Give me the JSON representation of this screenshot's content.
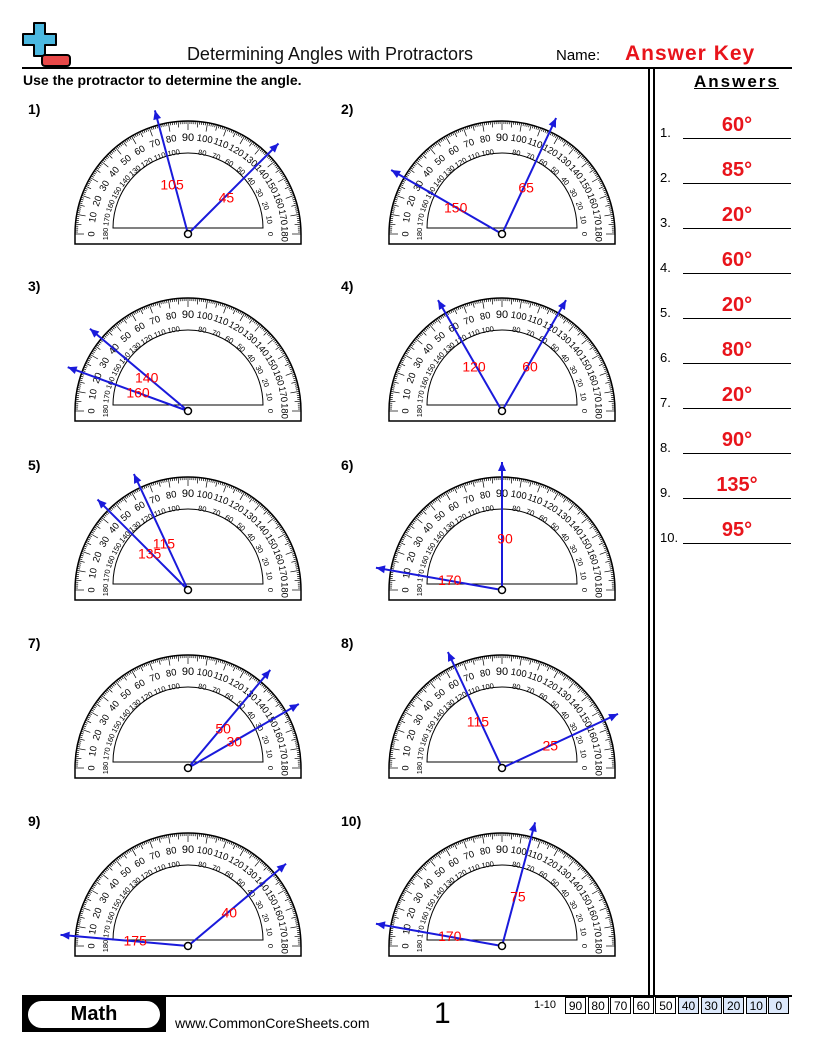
{
  "header": {
    "title": "Determining Angles with Protractors",
    "name_label": "Name:",
    "name_value": "Answer Key",
    "instructions": "Use the protractor to determine the angle."
  },
  "answers": {
    "title": "Answers",
    "items": [
      {
        "num": "1.",
        "value": "60°"
      },
      {
        "num": "2.",
        "value": "85°"
      },
      {
        "num": "3.",
        "value": "20°"
      },
      {
        "num": "4.",
        "value": "60°"
      },
      {
        "num": "5.",
        "value": "20°"
      },
      {
        "num": "6.",
        "value": "80°"
      },
      {
        "num": "7.",
        "value": "20°"
      },
      {
        "num": "8.",
        "value": "90°"
      },
      {
        "num": "9.",
        "value": "135°"
      },
      {
        "num": "10.",
        "value": "95°"
      }
    ]
  },
  "protractor": {
    "outer_labels": [
      "0",
      "10",
      "20",
      "30",
      "40",
      "50",
      "60",
      "70",
      "80",
      "90",
      "100",
      "110",
      "120",
      "130",
      "140",
      "150",
      "160",
      "170",
      "180"
    ],
    "inner_labels": [
      "180",
      "170",
      "160",
      "150",
      "140",
      "130",
      "120",
      "110",
      "100",
      "",
      "80",
      "70",
      "60",
      "50",
      "40",
      "30",
      "20",
      "10",
      "0"
    ]
  },
  "problems": [
    {
      "num": "1)",
      "rays": [
        105,
        45
      ],
      "labels": [
        "105",
        "45"
      ]
    },
    {
      "num": "2)",
      "rays": [
        150,
        65
      ],
      "labels": [
        "150",
        "65"
      ]
    },
    {
      "num": "3)",
      "rays": [
        140,
        160
      ],
      "labels": [
        "140",
        "160"
      ]
    },
    {
      "num": "4)",
      "rays": [
        120,
        60
      ],
      "labels": [
        "120",
        "60"
      ]
    },
    {
      "num": "5)",
      "rays": [
        135,
        115
      ],
      "labels": [
        "135",
        "115"
      ]
    },
    {
      "num": "6)",
      "rays": [
        90,
        170
      ],
      "labels": [
        "90",
        "170"
      ]
    },
    {
      "num": "7)",
      "rays": [
        50,
        30
      ],
      "labels": [
        "50",
        "30"
      ]
    },
    {
      "num": "8)",
      "rays": [
        115,
        25
      ],
      "labels": [
        "115",
        "25"
      ]
    },
    {
      "num": "9)",
      "rays": [
        175,
        40
      ],
      "labels": [
        "175",
        "40"
      ]
    },
    {
      "num": "10)",
      "rays": [
        75,
        170
      ],
      "labels": [
        "75",
        "170"
      ]
    }
  ],
  "colors": {
    "ray": "#1a1adb",
    "label": "#ff0000",
    "answer": "#e8141b",
    "logo_plus": "#4bb8e0",
    "logo_minus": "#e84848",
    "score_highlight": "#dce8fb"
  },
  "footer": {
    "subject": "Math",
    "site": "www.CommonCoreSheets.com",
    "page": "1",
    "range": "1-10",
    "scores": [
      "90",
      "80",
      "70",
      "60",
      "50",
      "40",
      "30",
      "20",
      "10",
      "0"
    ]
  }
}
